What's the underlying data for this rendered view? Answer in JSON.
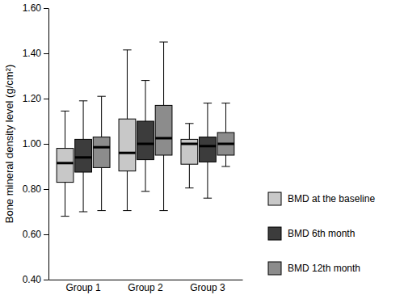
{
  "chart_data": {
    "type": "box",
    "y_label": "Bone mineral density level (g/cm²)",
    "categories": [
      "Group 1",
      "Group 2",
      "Group 3"
    ],
    "ylim": [
      0.4,
      1.6
    ],
    "yticks": [
      {
        "value": 0.4,
        "label": "0.40"
      },
      {
        "value": 0.6,
        "label": "0.60"
      },
      {
        "value": 0.8,
        "label": "0.80"
      },
      {
        "value": 1.0,
        "label": "1.00"
      },
      {
        "value": 1.2,
        "label": "1.20"
      },
      {
        "value": 1.4,
        "label": "1.40"
      },
      {
        "value": 1.6,
        "label": "1.60"
      }
    ],
    "legend": "right",
    "series": [
      {
        "name": "BMD at the baseline",
        "color": "#c8c8c8",
        "min": [
          0.68,
          0.705,
          0.805
        ],
        "q1": [
          0.83,
          0.88,
          0.91
        ],
        "median": [
          0.915,
          0.96,
          1.0
        ],
        "q3": [
          0.98,
          1.11,
          1.02
        ],
        "max": [
          1.145,
          1.415,
          1.09
        ]
      },
      {
        "name": "BMD 6th month",
        "color": "#3c3c3c",
        "min": [
          0.7,
          0.79,
          0.76
        ],
        "q1": [
          0.875,
          0.93,
          0.92
        ],
        "median": [
          0.94,
          1.0,
          0.99
        ],
        "q3": [
          1.02,
          1.1,
          1.03
        ],
        "max": [
          1.19,
          1.28,
          1.18
        ]
      },
      {
        "name": "BMD 12th month",
        "color": "#8c8c8c",
        "min": [
          0.705,
          0.705,
          0.9
        ],
        "q1": [
          0.895,
          0.95,
          0.95
        ],
        "median": [
          0.985,
          1.025,
          1.0
        ],
        "q3": [
          1.03,
          1.17,
          1.05
        ],
        "max": [
          1.21,
          1.45,
          1.18
        ]
      }
    ]
  }
}
